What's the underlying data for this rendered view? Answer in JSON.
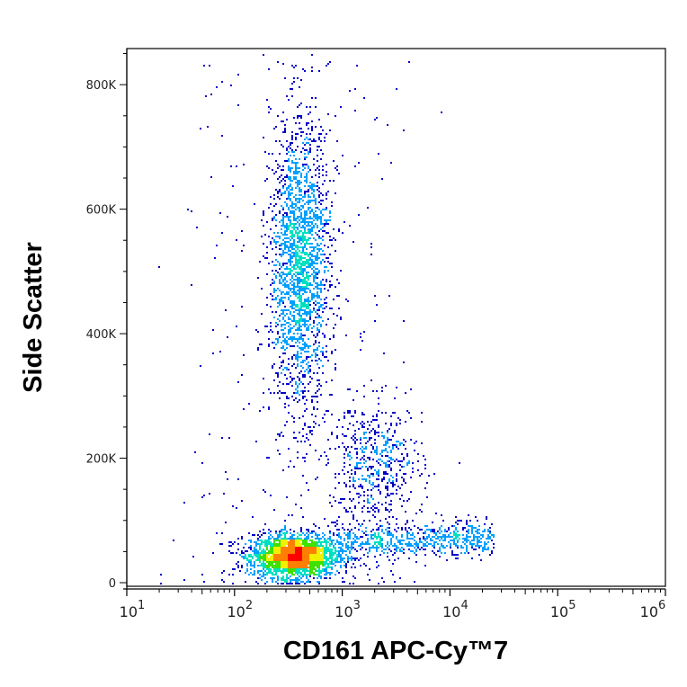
{
  "chart_data": {
    "type": "scatter",
    "subtype": "flow-cytometry-density-dot-plot",
    "xlabel": "CD161 APC-Cy™7",
    "ylabel": "Side Scatter",
    "x_scale": "log",
    "xlim": [
      10,
      1000000
    ],
    "ylim": [
      0,
      858000
    ],
    "x_ticks": [
      {
        "value": 10,
        "base": "10",
        "exp": "1"
      },
      {
        "value": 100,
        "base": "10",
        "exp": "2"
      },
      {
        "value": 1000,
        "base": "10",
        "exp": "3"
      },
      {
        "value": 10000,
        "base": "10",
        "exp": "4"
      },
      {
        "value": 100000,
        "base": "10",
        "exp": "5"
      },
      {
        "value": 1000000,
        "base": "10",
        "exp": "6"
      }
    ],
    "y_ticks": [
      {
        "value": 0,
        "label": "0"
      },
      {
        "value": 200000,
        "label": "200K"
      },
      {
        "value": 400000,
        "label": "400K"
      },
      {
        "value": 600000,
        "label": "600K"
      },
      {
        "value": 800000,
        "label": "800K"
      }
    ],
    "y_minor_step": 50000,
    "colormap": [
      "#0000c8",
      "#00a0ff",
      "#00e0c0",
      "#40e000",
      "#f0f000",
      "#ff8000",
      "#ff0000"
    ],
    "populations": [
      {
        "name": "lymphocytes",
        "log10_x_mean": 2.55,
        "log10_x_sd": 0.2,
        "y_mean": 45000,
        "y_sd": 17000,
        "count": 2600
      },
      {
        "name": "granulocytes",
        "log10_x_mean": 2.6,
        "log10_x_sd": 0.14,
        "y_mean": 510000,
        "y_sd": 115000,
        "count": 2200
      },
      {
        "name": "monocytes",
        "log10_x_mean": 3.3,
        "log10_x_sd": 0.22,
        "y_mean": 190000,
        "y_sd": 50000,
        "count": 550
      },
      {
        "name": "cd161-positive-tail",
        "log10_x_range": [
          2.9,
          4.4
        ],
        "y_mean": 70000,
        "y_sd": 14000,
        "count": 700
      },
      {
        "name": "background",
        "log10_x_range": [
          1.2,
          4.0
        ],
        "y_range": [
          0,
          850000
        ],
        "count": 350
      }
    ]
  }
}
